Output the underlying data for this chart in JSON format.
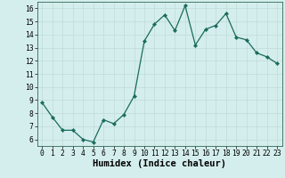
{
  "title": "",
  "xlabel": "Humidex (Indice chaleur)",
  "ylabel": "",
  "x": [
    0,
    1,
    2,
    3,
    4,
    5,
    6,
    7,
    8,
    9,
    10,
    11,
    12,
    13,
    14,
    15,
    16,
    17,
    18,
    19,
    20,
    21,
    22,
    23
  ],
  "y": [
    8.8,
    7.7,
    6.7,
    6.7,
    6.0,
    5.8,
    7.5,
    7.2,
    7.9,
    9.3,
    13.5,
    14.8,
    15.5,
    14.3,
    16.2,
    13.2,
    14.4,
    14.7,
    15.6,
    13.8,
    13.6,
    12.6,
    12.3,
    11.8
  ],
  "line_color": "#1a6b5a",
  "marker": "D",
  "marker_size": 2.2,
  "bg_color": "#d4eeed",
  "grid_color": "#c0dbd8",
  "ylim": [
    5.5,
    16.5
  ],
  "xlim": [
    -0.5,
    23.5
  ],
  "yticks": [
    6,
    7,
    8,
    9,
    10,
    11,
    12,
    13,
    14,
    15,
    16
  ],
  "xticks": [
    0,
    1,
    2,
    3,
    4,
    5,
    6,
    7,
    8,
    9,
    10,
    11,
    12,
    13,
    14,
    15,
    16,
    17,
    18,
    19,
    20,
    21,
    22,
    23
  ],
  "tick_label_fontsize": 5.8,
  "xlabel_fontsize": 7.5,
  "line_width": 0.9
}
